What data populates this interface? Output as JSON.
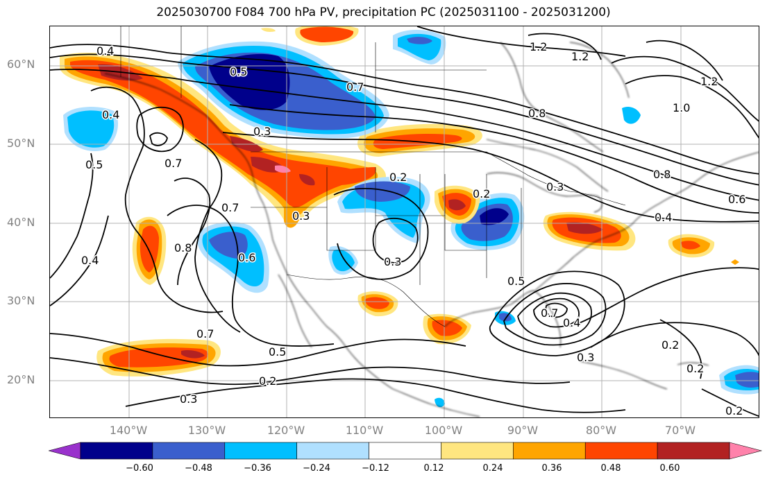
{
  "title": "2025030700 F084 700 hPa PV, precipitation PC (2025031100 - 2025031200)",
  "lat_labels": [
    "60°N",
    "50°N",
    "40°N",
    "30°N",
    "20°N"
  ],
  "lon_labels": [
    "140°W",
    "130°W",
    "120°W",
    "110°W",
    "100°W",
    "90°W",
    "80°W",
    "70°W"
  ],
  "colorbar": {
    "ticks": [
      "−0.60",
      "−0.48",
      "−0.36",
      "−0.24",
      "−0.12",
      "0.12",
      "0.24",
      "0.36",
      "0.48",
      "0.60"
    ],
    "colors": [
      "#9932cc",
      "#00008b",
      "#3a5fcd",
      "#00bfff",
      "#b0e0ff",
      "#ffffff",
      "#ffe680",
      "#ffa500",
      "#ff4500",
      "#b22222",
      "#ff82ab"
    ]
  },
  "contour_labels": [
    "0.4",
    "0.5",
    "0.7",
    "0.8",
    "1.2",
    "1.2",
    "1.2",
    "1.0",
    "0.8",
    "0.7",
    "0.4",
    "0.5",
    "0.7",
    "0.3",
    "0.2",
    "0.2",
    "0.3",
    "0.3",
    "0.6",
    "0.4",
    "0.7",
    "0.6",
    "0.8",
    "0.4",
    "0.3",
    "0.5",
    "0.7",
    "0.4",
    "0.3",
    "0.5",
    "0.2",
    "0.3",
    "0.2",
    "0.2",
    "0.2"
  ]
}
